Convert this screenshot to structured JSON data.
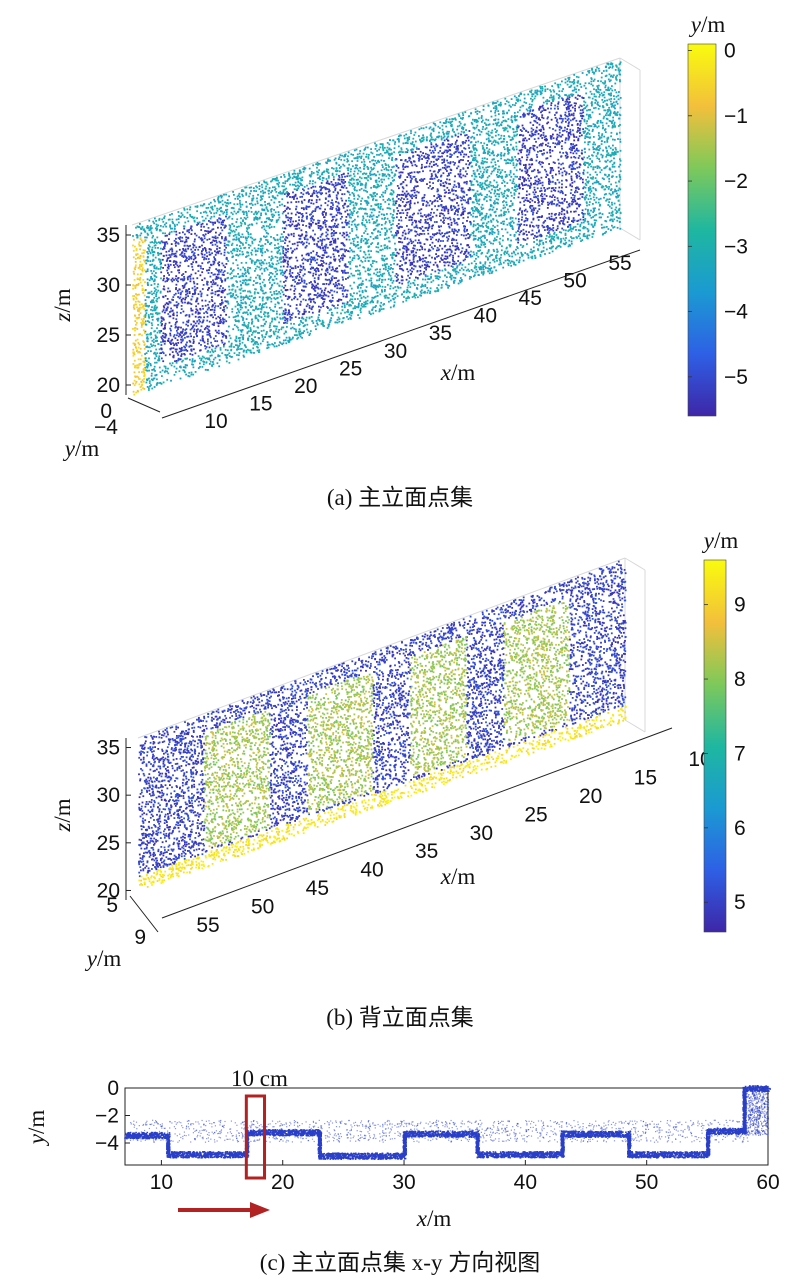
{
  "chart_data": [
    {
      "type": "scatter",
      "caption": "(a) 主立面点集",
      "xlabel": "x/m",
      "ylabel": "y/m",
      "zlabel": "z/m",
      "colorbar_label": "y/m",
      "x_ticks": [
        "10",
        "15",
        "20",
        "25",
        "30",
        "35",
        "40",
        "45",
        "50",
        "55"
      ],
      "y_ticks": [
        "0",
        "−4"
      ],
      "z_ticks": [
        "35",
        "30",
        "25",
        "20"
      ],
      "colorbar_ticks": [
        "0",
        "−1",
        "−2",
        "−3",
        "−4",
        "−5"
      ],
      "colorbar_range": [
        -5.6,
        0.1
      ],
      "colormap": [
        "#3e26a8",
        "#2e60e6",
        "#1b9ad2",
        "#1fb7a0",
        "#7ec95a",
        "#f3c03b",
        "#f9fb0e"
      ],
      "x_range": [
        7,
        59
      ],
      "z_range": [
        19,
        36
      ],
      "y_range": [
        -5.6,
        0
      ],
      "window_regions_x": [
        [
          10,
          17
        ],
        [
          23,
          30
        ],
        [
          35,
          43
        ],
        [
          48,
          55
        ]
      ],
      "window_region_y": -5.2,
      "wall_y": -3.2,
      "left_edge_y": -0.6
    },
    {
      "type": "scatter",
      "caption": "(b) 背立面点集",
      "xlabel": "x/m",
      "ylabel": "y/m",
      "zlabel": "z/m",
      "colorbar_label": "y/m",
      "x_ticks": [
        "55",
        "50",
        "45",
        "40",
        "35",
        "30",
        "25",
        "20",
        "15",
        "10"
      ],
      "y_ticks": [
        "5",
        "9"
      ],
      "z_ticks": [
        "35",
        "30",
        "25",
        "20"
      ],
      "colorbar_ticks": [
        "9",
        "8",
        "7",
        "6",
        "5"
      ],
      "colorbar_range": [
        4.6,
        9.6
      ],
      "colormap": [
        "#3e26a8",
        "#2e60e6",
        "#1b9ad2",
        "#1fb7a0",
        "#7ec95a",
        "#f3c03b",
        "#f9fb0e"
      ],
      "x_range": [
        7,
        59
      ],
      "z_range": [
        19,
        36
      ],
      "y_range": [
        4.6,
        9.6
      ],
      "window_regions_x": [
        [
          53,
          46
        ],
        [
          42,
          36
        ],
        [
          32,
          25
        ],
        [
          21,
          14
        ]
      ],
      "window_region_y": 8.2,
      "wall_y": 5.0,
      "bottom_edge_y": 9.3
    },
    {
      "type": "scatter",
      "caption": "(c) 主立面点集 x-y 方向视图",
      "xlabel": "x/m",
      "ylabel": "y/m",
      "x_ticks": [
        "10",
        "20",
        "30",
        "40",
        "50",
        "60"
      ],
      "y_ticks": [
        "0",
        "−2",
        "−4"
      ],
      "xlim": [
        7,
        60
      ],
      "ylim": [
        -5.6,
        0
      ],
      "annotation": "10 cm",
      "annotation_box_x": [
        17,
        18.5
      ],
      "point_color": "#2a3fc8",
      "box_color": "#b22222",
      "arrow_color": "#b22222",
      "profile": [
        {
          "x": 7,
          "y": -3.4
        },
        {
          "x": 10.5,
          "y": -3.4
        },
        {
          "x": 10.5,
          "y": -4.8
        },
        {
          "x": 17,
          "y": -4.8
        },
        {
          "x": 17,
          "y": -3.2
        },
        {
          "x": 23,
          "y": -3.2
        },
        {
          "x": 23,
          "y": -4.9
        },
        {
          "x": 30,
          "y": -4.9
        },
        {
          "x": 30,
          "y": -3.3
        },
        {
          "x": 36,
          "y": -3.3
        },
        {
          "x": 36,
          "y": -4.8
        },
        {
          "x": 43,
          "y": -4.8
        },
        {
          "x": 43,
          "y": -3.3
        },
        {
          "x": 48.5,
          "y": -3.3
        },
        {
          "x": 48.5,
          "y": -4.8
        },
        {
          "x": 55,
          "y": -4.8
        },
        {
          "x": 55,
          "y": -3.1
        },
        {
          "x": 58,
          "y": -3.1
        },
        {
          "x": 58,
          "y": 0
        },
        {
          "x": 60,
          "y": 0
        }
      ]
    }
  ]
}
